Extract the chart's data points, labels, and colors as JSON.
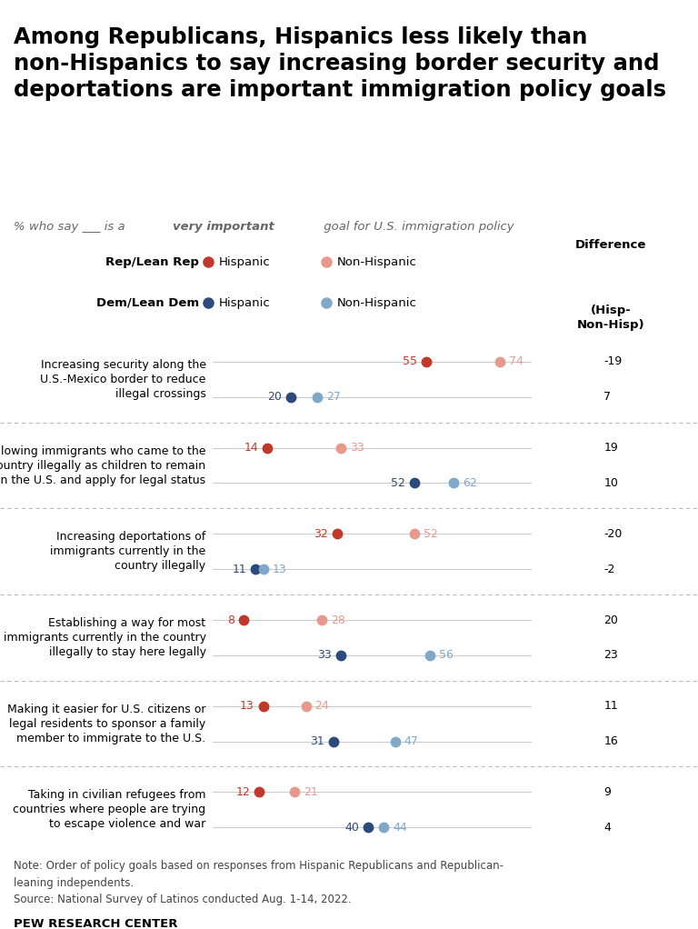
{
  "title": "Among Republicans, Hispanics less likely than\nnon-Hispanics to say increasing border security and\ndeportations are important immigration policy goals",
  "categories": [
    "Increasing security along the\nU.S.-Mexico border to reduce\nillegal crossings",
    "Allowing immigrants who came to the\ncountry illegally as children to remain\nin the U.S. and apply for legal status",
    "Increasing deportations of\nimmigrants currently in the\ncountry illegally",
    "Establishing a way for most\nimmigrants currently in the country\nillegally to stay here legally",
    "Making it easier for U.S. citizens or\nlegal residents to sponsor a family\nmember to immigrate to the U.S.",
    "Taking in civilian refugees from\ncountries where people are trying\nto escape violence and war"
  ],
  "rep_hispanic": [
    55,
    14,
    32,
    8,
    13,
    12
  ],
  "rep_non_hispanic": [
    74,
    33,
    52,
    28,
    24,
    21
  ],
  "dem_hispanic": [
    20,
    52,
    11,
    33,
    31,
    40
  ],
  "dem_non_hispanic": [
    27,
    62,
    13,
    56,
    47,
    44
  ],
  "rep_diff": [
    -19,
    19,
    -20,
    20,
    11,
    9
  ],
  "dem_diff": [
    7,
    10,
    -2,
    23,
    16,
    4
  ],
  "color_rep_hisp": "#c0392b",
  "color_rep_nonhisp": "#e8998d",
  "color_dem_hisp": "#2c4a7c",
  "color_dem_nonhisp": "#7fa8c9",
  "note1": "Note: Order of policy goals based on responses from Hispanic Republicans and Republican-",
  "note2": "leaning independents.",
  "note3": "Source: National Survey of Latinos conducted Aug. 1-14, 2022.",
  "source_bold": "PEW RESEARCH CENTER"
}
